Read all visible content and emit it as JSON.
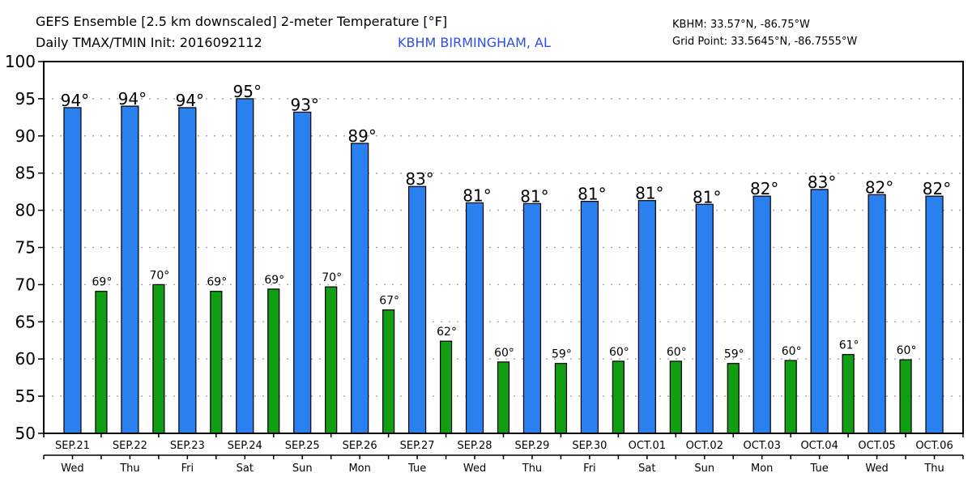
{
  "header": {
    "title_line1": "GEFS Ensemble [2.5 km downscaled] 2-meter Temperature [°F]",
    "title_line2": "Daily TMAX/TMIN Init: 2016092112",
    "station": "KBHM BIRMINGHAM, AL",
    "station_coords": "KBHM: 33.57°N, -86.75°W",
    "grid_point": "Grid Point: 33.5645°N, -86.7555°W"
  },
  "colors": {
    "tmax": "#2a80ee",
    "tmin": "#129e12",
    "station": "#2b4fe8"
  },
  "chart_data": {
    "type": "bar",
    "title": "GEFS Ensemble [2.5 km downscaled] 2-meter Temperature [°F]",
    "ylim": [
      50,
      100
    ],
    "yticks": [
      "50",
      "55",
      "60",
      "65",
      "70",
      "75",
      "80",
      "85",
      "90",
      "95",
      "100"
    ],
    "grid": true,
    "categories": [
      "SEP.21",
      "SEP.22",
      "SEP.23",
      "SEP.24",
      "SEP.25",
      "SEP.26",
      "SEP.27",
      "SEP.28",
      "SEP.29",
      "SEP.30",
      "OCT.01",
      "OCT.02",
      "OCT.03",
      "OCT.04",
      "OCT.05",
      "OCT.06"
    ],
    "weekdays": [
      "Wed",
      "Thu",
      "Fri",
      "Sat",
      "Sun",
      "Mon",
      "Tue",
      "Wed",
      "Thu",
      "Fri",
      "Sat",
      "Sun",
      "Mon",
      "Tue",
      "Wed",
      "Thu"
    ],
    "series": [
      {
        "name": "TMAX",
        "values": [
          93.8,
          94.0,
          93.8,
          95.0,
          93.2,
          89.0,
          83.2,
          81.0,
          80.9,
          81.2,
          81.3,
          80.8,
          81.9,
          82.8,
          82.1,
          81.9
        ],
        "labels": [
          "94°",
          "94°",
          "94°",
          "95°",
          "93°",
          "89°",
          "83°",
          "81°",
          "81°",
          "81°",
          "81°",
          "81°",
          "82°",
          "83°",
          "82°",
          "82°"
        ]
      },
      {
        "name": "TMIN",
        "values": [
          69.1,
          70.0,
          69.1,
          69.4,
          69.7,
          66.6,
          62.4,
          59.6,
          59.4,
          59.7,
          59.7,
          59.4,
          59.8,
          60.6,
          59.9,
          null
        ],
        "labels": [
          "69°",
          "70°",
          "69°",
          "69°",
          "70°",
          "67°",
          "62°",
          "60°",
          "59°",
          "60°",
          "60°",
          "59°",
          "60°",
          "61°",
          "60°",
          null
        ]
      }
    ]
  }
}
